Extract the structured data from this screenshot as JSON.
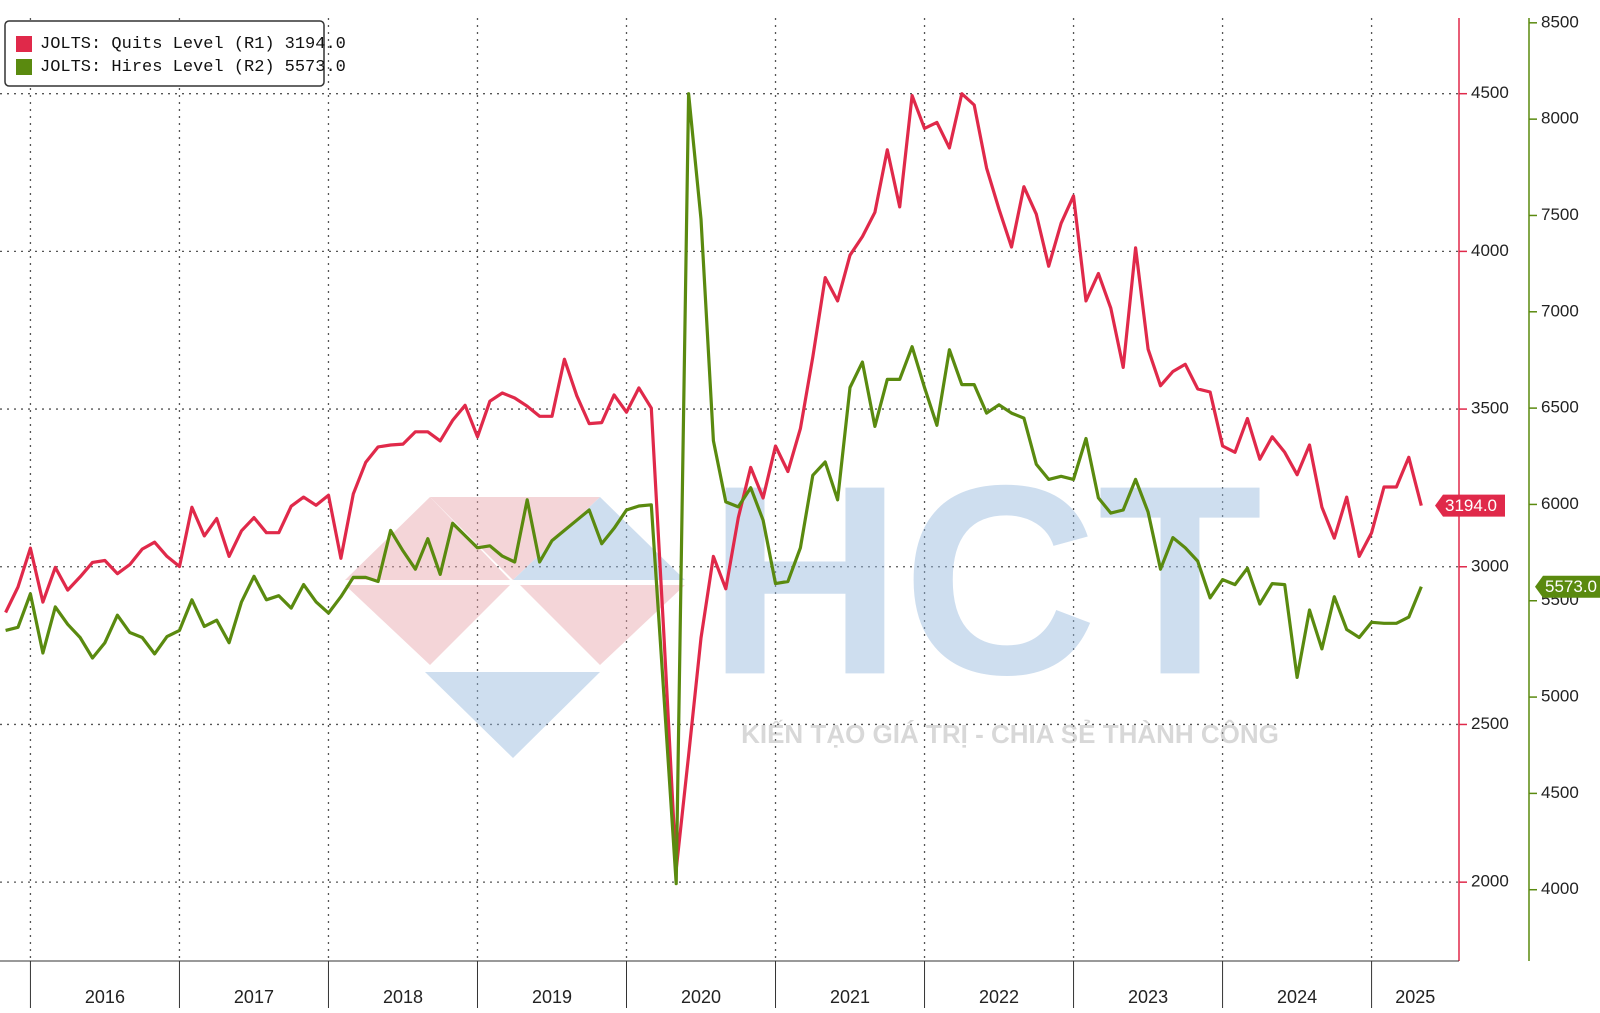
{
  "chart_data": {
    "type": "line",
    "categories": [
      null,
      null,
      null,
      "2016",
      null,
      null,
      null,
      null,
      null,
      null,
      null,
      null,
      null,
      null,
      null,
      "2017",
      null,
      null,
      null,
      null,
      null,
      null,
      null,
      null,
      null,
      null,
      null,
      "2018",
      null,
      null,
      null,
      null,
      null,
      null,
      null,
      null,
      null,
      null,
      null,
      "2019",
      null,
      null,
      null,
      null,
      null,
      null,
      null,
      null,
      null,
      null,
      null,
      "2020",
      null,
      null,
      null,
      null,
      null,
      null,
      null,
      null,
      null,
      null,
      null,
      "2021",
      null,
      null,
      null,
      null,
      null,
      null,
      null,
      null,
      null,
      null,
      null,
      "2022",
      null,
      null,
      null,
      null,
      null,
      null,
      null,
      null,
      null,
      null,
      null,
      "2023",
      null,
      null,
      null,
      null,
      null,
      null,
      null,
      null,
      null,
      null,
      null,
      "2024",
      null,
      null,
      null,
      null,
      null,
      null,
      null,
      null,
      null,
      null,
      null,
      "2025",
      null,
      null,
      null
    ],
    "series": [
      {
        "name": "JOLTS: Quits Level (R1)",
        "color": "#e0294a",
        "last_label": "3194.0",
        "values": [
          2855,
          2936,
          3059,
          2888,
          2998,
          2926,
          2968,
          3014,
          3020,
          2978,
          3007,
          3056,
          3078,
          3033,
          3001,
          3189,
          3098,
          3153,
          3033,
          3114,
          3156,
          3108,
          3108,
          3192,
          3221,
          3195,
          3227,
          3027,
          3231,
          3331,
          3380,
          3386,
          3389,
          3428,
          3428,
          3399,
          3464,
          3512,
          3412,
          3525,
          3551,
          3535,
          3509,
          3477,
          3477,
          3658,
          3542,
          3454,
          3457,
          3545,
          3490,
          3567,
          3503,
          2790,
          2040,
          2402,
          2774,
          3033,
          2930,
          3156,
          3315,
          3218,
          3383,
          3302,
          3438,
          3665,
          3917,
          3843,
          3988,
          4047,
          4124,
          4322,
          4141,
          4494,
          4390,
          4409,
          4328,
          4500,
          4464,
          4264,
          4134,
          4014,
          4205,
          4118,
          3953,
          4089,
          4176,
          3843,
          3930,
          3820,
          3632,
          4011,
          3690,
          3574,
          3619,
          3642,
          3564,
          3554,
          3383,
          3363,
          3470,
          3341,
          3412,
          3363,
          3292,
          3386,
          3189,
          3091,
          3221,
          3033,
          3108,
          3253,
          3253,
          3347,
          3194
        ]
      },
      {
        "name": "JOLTS: Hires Level (R2)",
        "color": "#5a8a0f",
        "axis": "y2",
        "last_label": "5573.0",
        "values": [
          5346,
          5362,
          5536,
          5229,
          5468,
          5378,
          5309,
          5203,
          5282,
          5425,
          5335,
          5309,
          5224,
          5314,
          5346,
          5505,
          5367,
          5399,
          5282,
          5494,
          5627,
          5505,
          5526,
          5462,
          5584,
          5494,
          5436,
          5521,
          5621,
          5621,
          5600,
          5865,
          5759,
          5664,
          5822,
          5637,
          5902,
          5838,
          5775,
          5785,
          5732,
          5701,
          6024,
          5701,
          5812,
          5865,
          5918,
          5971,
          5796,
          5876,
          5971,
          5992,
          5998,
          5017,
          4032,
          8132,
          7481,
          6331,
          6013,
          5987,
          6087,
          5918,
          5589,
          5600,
          5775,
          6151,
          6220,
          6024,
          6607,
          6739,
          6405,
          6649,
          6649,
          6819,
          6607,
          6411,
          6803,
          6622,
          6622,
          6474,
          6517,
          6474,
          6448,
          6209,
          6130,
          6146,
          6130,
          6342,
          6034,
          5955,
          5971,
          6130,
          5960,
          5664,
          5828,
          5775,
          5706,
          5515,
          5610,
          5584,
          5669,
          5483,
          5589,
          5584,
          5102,
          5452,
          5250,
          5521,
          5351,
          5309,
          5388,
          5383,
          5383,
          5415,
          5573
        ]
      }
    ],
    "ylim": [
      1750,
      4740
    ],
    "yticks": [
      2000,
      2500,
      3000,
      3500,
      4000,
      4500
    ],
    "y2lim": [
      3630,
      8525
    ],
    "y2ticks": [
      4000,
      4500,
      5000,
      5500,
      6000,
      6500,
      7000,
      7500,
      8000,
      8500
    ],
    "grid": true,
    "legend": "top-left",
    "watermark": {
      "text": "HCT",
      "tagline": "KIẾN TẠO GIÁ TRỊ - CHIA SẺ THÀNH CÔNG"
    }
  }
}
